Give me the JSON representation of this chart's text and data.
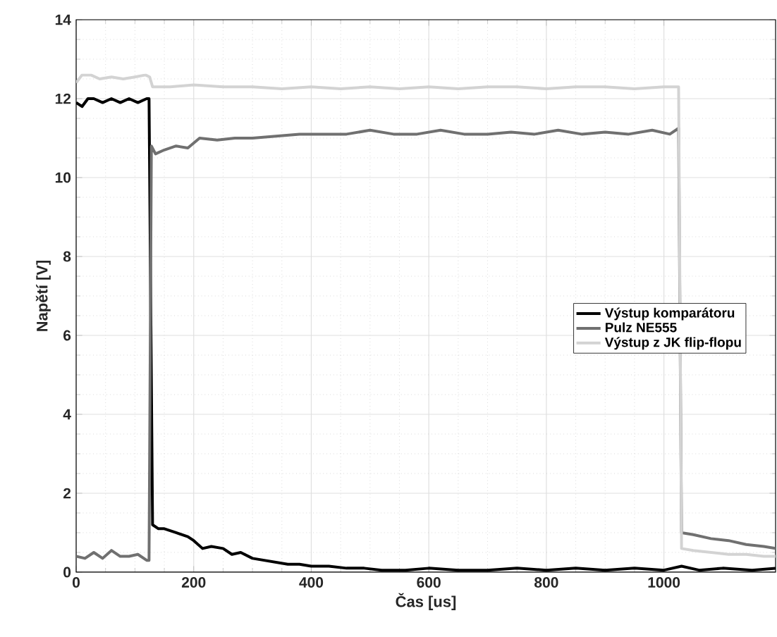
{
  "chart_data": {
    "type": "line",
    "xlabel": "Čas [us]",
    "ylabel": "Napětí [V]",
    "xlim": [
      0,
      1190
    ],
    "ylim": [
      0,
      14
    ],
    "xticks": [
      0,
      200,
      400,
      600,
      800,
      1000
    ],
    "yticks": [
      0,
      2,
      4,
      6,
      8,
      10,
      12,
      14
    ],
    "grid": true,
    "legend": "right",
    "series": [
      {
        "name": "Výstup komparátoru",
        "color": "#000000",
        "x": [
          0,
          10,
          20,
          30,
          45,
          60,
          75,
          90,
          105,
          120,
          124,
          130,
          140,
          150,
          170,
          190,
          200,
          215,
          230,
          250,
          265,
          280,
          300,
          320,
          340,
          360,
          380,
          400,
          430,
          460,
          490,
          520,
          560,
          600,
          650,
          700,
          750,
          800,
          850,
          900,
          950,
          1000,
          1030,
          1060,
          1100,
          1150,
          1190
        ],
        "values": [
          11.9,
          11.8,
          12.0,
          12.0,
          11.9,
          12.0,
          11.9,
          12.0,
          11.9,
          12.0,
          12.0,
          1.2,
          1.1,
          1.1,
          1.0,
          0.9,
          0.8,
          0.6,
          0.65,
          0.6,
          0.45,
          0.5,
          0.35,
          0.3,
          0.25,
          0.2,
          0.2,
          0.15,
          0.15,
          0.1,
          0.1,
          0.05,
          0.05,
          0.1,
          0.05,
          0.05,
          0.1,
          0.05,
          0.1,
          0.05,
          0.1,
          0.05,
          0.15,
          0.05,
          0.1,
          0.05,
          0.1
        ]
      },
      {
        "name": "Pulz NE555",
        "color": "#707070",
        "x": [
          0,
          15,
          30,
          45,
          60,
          75,
          90,
          105,
          120,
          124,
          128,
          135,
          150,
          170,
          190,
          210,
          240,
          270,
          300,
          340,
          380,
          420,
          460,
          500,
          540,
          580,
          620,
          660,
          700,
          740,
          780,
          820,
          860,
          900,
          940,
          980,
          1010,
          1025,
          1030,
          1050,
          1080,
          1110,
          1140,
          1170,
          1190
        ],
        "values": [
          0.4,
          0.35,
          0.5,
          0.35,
          0.55,
          0.4,
          0.4,
          0.45,
          0.3,
          0.3,
          10.8,
          10.6,
          10.7,
          10.8,
          10.75,
          11.0,
          10.95,
          11.0,
          11.0,
          11.05,
          11.1,
          11.1,
          11.1,
          11.2,
          11.1,
          11.1,
          11.2,
          11.1,
          11.1,
          11.15,
          11.1,
          11.2,
          11.1,
          11.15,
          11.1,
          11.2,
          11.1,
          11.25,
          1.0,
          0.95,
          0.85,
          0.8,
          0.7,
          0.65,
          0.6
        ]
      },
      {
        "name": "Výstup z JK flip-flopu",
        "color": "#d3d3d3",
        "x": [
          0,
          10,
          25,
          40,
          60,
          80,
          100,
          118,
          125,
          130,
          160,
          200,
          250,
          300,
          350,
          400,
          450,
          500,
          550,
          600,
          650,
          700,
          750,
          800,
          850,
          900,
          950,
          1000,
          1020,
          1025,
          1030,
          1050,
          1080,
          1110,
          1140,
          1170,
          1190
        ],
        "values": [
          12.4,
          12.6,
          12.6,
          12.5,
          12.55,
          12.5,
          12.55,
          12.6,
          12.55,
          12.3,
          12.3,
          12.35,
          12.3,
          12.3,
          12.25,
          12.3,
          12.25,
          12.3,
          12.25,
          12.3,
          12.25,
          12.3,
          12.3,
          12.25,
          12.3,
          12.3,
          12.25,
          12.3,
          12.3,
          12.3,
          0.6,
          0.55,
          0.5,
          0.45,
          0.45,
          0.4,
          0.4
        ]
      }
    ]
  }
}
